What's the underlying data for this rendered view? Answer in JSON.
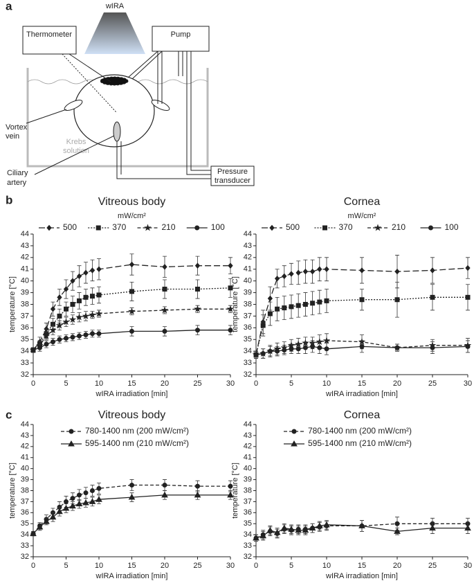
{
  "diagram": {
    "label": "a",
    "source": "wIRA",
    "thermometer": "Thermometer",
    "pump": "Pump",
    "vortex_vein": [
      "Vortex",
      "vein"
    ],
    "krebs": [
      "Krebs",
      "solution"
    ],
    "ciliary_artery": [
      "Ciliary",
      "artery"
    ],
    "pressure_transducer": [
      "Pressure",
      "transducer"
    ]
  },
  "chart_data": [
    {
      "type": "line",
      "panel": "b",
      "title": "Vitreous body",
      "units": "mW/cm²",
      "legend": "top-row",
      "xlabel": "wIRA irradiation [min]",
      "ylabel": "temperature [°C]",
      "x": [
        0,
        1,
        2,
        3,
        4,
        5,
        6,
        7,
        8,
        9,
        10,
        15,
        20,
        25,
        30
      ],
      "xlim": [
        0,
        30
      ],
      "xticks": [
        0,
        5,
        10,
        15,
        20,
        25,
        30
      ],
      "ylim": [
        32,
        44
      ],
      "yticks": [
        32,
        33,
        34,
        35,
        36,
        37,
        38,
        39,
        40,
        41,
        42,
        43,
        44
      ],
      "series": [
        {
          "name": "500",
          "color": "#222",
          "dash": "long-dash",
          "marker": "diamond",
          "values": [
            34.1,
            34.8,
            35.9,
            37.6,
            38.6,
            39.3,
            40.0,
            40.4,
            40.7,
            40.9,
            41.0,
            41.4,
            41.2,
            41.3,
            41.3
          ],
          "errors": [
            0.2,
            0.4,
            0.5,
            0.6,
            0.7,
            0.8,
            0.8,
            0.9,
            0.9,
            0.9,
            0.9,
            0.9,
            0.9,
            0.8,
            0.7
          ]
        },
        {
          "name": "370",
          "color": "#222",
          "dash": "dotted",
          "marker": "square",
          "values": [
            34.1,
            34.6,
            35.5,
            36.3,
            37.0,
            37.6,
            38.0,
            38.3,
            38.6,
            38.7,
            38.8,
            39.1,
            39.3,
            39.3,
            39.4
          ],
          "errors": [
            0.2,
            0.3,
            0.4,
            0.5,
            0.6,
            0.6,
            0.7,
            0.7,
            0.7,
            0.7,
            0.7,
            0.8,
            0.8,
            0.8,
            0.8
          ]
        },
        {
          "name": "210",
          "color": "#222",
          "dash": "dash",
          "marker": "star",
          "values": [
            34.1,
            34.5,
            35.3,
            35.8,
            36.2,
            36.5,
            36.7,
            36.9,
            37.0,
            37.1,
            37.2,
            37.4,
            37.5,
            37.6,
            37.6
          ],
          "errors": [
            0.2,
            0.3,
            0.3,
            0.4,
            0.4,
            0.4,
            0.4,
            0.4,
            0.4,
            0.3,
            0.3,
            0.3,
            0.3,
            0.3,
            0.3
          ]
        },
        {
          "name": "100",
          "color": "#222",
          "dash": "solid",
          "marker": "circle",
          "values": [
            34.1,
            34.3,
            34.6,
            34.8,
            35.0,
            35.1,
            35.2,
            35.3,
            35.4,
            35.5,
            35.5,
            35.7,
            35.7,
            35.8,
            35.8
          ],
          "errors": [
            0.2,
            0.3,
            0.3,
            0.3,
            0.3,
            0.3,
            0.3,
            0.3,
            0.3,
            0.3,
            0.3,
            0.4,
            0.4,
            0.4,
            0.4
          ]
        }
      ]
    },
    {
      "type": "line",
      "title": "Cornea",
      "units": "mW/cm²",
      "legend": "top-row",
      "xlabel": "wIRA irradiation [min]",
      "ylabel": "temperature [°C]",
      "x": [
        0,
        1,
        2,
        3,
        4,
        5,
        6,
        7,
        8,
        9,
        10,
        15,
        20,
        25,
        30
      ],
      "xlim": [
        0,
        30
      ],
      "xticks": [
        0,
        5,
        10,
        15,
        20,
        25,
        30
      ],
      "ylim": [
        32,
        44
      ],
      "yticks": [
        32,
        33,
        34,
        35,
        36,
        37,
        38,
        39,
        40,
        41,
        42,
        43,
        44
      ],
      "series": [
        {
          "name": "500",
          "color": "#222",
          "dash": "long-dash",
          "marker": "diamond",
          "values": [
            33.7,
            36.5,
            38.5,
            40.2,
            40.4,
            40.6,
            40.7,
            40.8,
            40.8,
            41.0,
            41.0,
            40.9,
            40.8,
            40.9,
            41.1
          ],
          "errors": [
            0.3,
            1.0,
            1.0,
            0.8,
            0.9,
            0.9,
            1.0,
            1.0,
            1.0,
            1.0,
            1.0,
            1.1,
            1.4,
            1.1,
            0.9
          ]
        },
        {
          "name": "370",
          "color": "#222",
          "dash": "dotted",
          "marker": "square",
          "values": [
            33.7,
            36.2,
            37.2,
            37.6,
            37.7,
            37.8,
            37.9,
            38.0,
            38.1,
            38.2,
            38.3,
            38.4,
            38.4,
            38.6,
            38.6
          ],
          "errors": [
            0.3,
            0.9,
            1.0,
            1.0,
            1.0,
            1.0,
            1.0,
            1.0,
            1.0,
            1.0,
            1.0,
            0.9,
            1.5,
            1.1,
            1.1
          ]
        },
        {
          "name": "210",
          "color": "#222",
          "dash": "dash",
          "marker": "star",
          "values": [
            33.7,
            33.8,
            34.0,
            34.2,
            34.3,
            34.5,
            34.6,
            34.7,
            34.7,
            34.8,
            34.9,
            34.8,
            34.3,
            34.5,
            34.5
          ],
          "errors": [
            0.3,
            0.4,
            0.5,
            0.5,
            0.5,
            0.5,
            0.5,
            0.5,
            0.5,
            0.6,
            0.6,
            0.6,
            0.3,
            0.5,
            0.6
          ]
        },
        {
          "name": "100",
          "color": "#222",
          "dash": "solid",
          "marker": "circle",
          "values": [
            33.7,
            33.8,
            34.0,
            34.0,
            34.1,
            34.2,
            34.2,
            34.3,
            34.4,
            34.3,
            34.2,
            34.4,
            34.3,
            34.3,
            34.4
          ],
          "errors": [
            0.3,
            0.4,
            0.4,
            0.4,
            0.4,
            0.4,
            0.4,
            0.5,
            0.5,
            0.5,
            0.5,
            0.5,
            0.3,
            0.5,
            0.5
          ]
        }
      ]
    },
    {
      "type": "line",
      "panel": "c",
      "title": "Vitreous body",
      "legend": "upper-left",
      "xlabel": "wIRA irradiation [min]",
      "ylabel": "temperature [°C]",
      "x": [
        0,
        1,
        2,
        3,
        4,
        5,
        6,
        7,
        8,
        9,
        10,
        15,
        20,
        25,
        30
      ],
      "xlim": [
        0,
        30
      ],
      "xticks": [
        0,
        5,
        10,
        15,
        20,
        25,
        30
      ],
      "ylim": [
        32,
        44
      ],
      "yticks": [
        32,
        33,
        34,
        35,
        36,
        37,
        38,
        39,
        40,
        41,
        42,
        43,
        44
      ],
      "series": [
        {
          "name": "780-1400 nm (200 mW/cm²)",
          "color": "#222",
          "dash": "dash",
          "marker": "circle",
          "values": [
            34.1,
            34.8,
            35.4,
            36.0,
            36.5,
            37.0,
            37.3,
            37.6,
            37.8,
            38.0,
            38.2,
            38.5,
            38.5,
            38.4,
            38.4
          ],
          "errors": [
            0.2,
            0.3,
            0.4,
            0.4,
            0.5,
            0.5,
            0.5,
            0.5,
            0.5,
            0.5,
            0.5,
            0.5,
            0.5,
            0.5,
            0.5
          ]
        },
        {
          "name": "595-1400 nm (210 mW/cm²)",
          "color": "#222",
          "dash": "solid",
          "marker": "triangle",
          "values": [
            34.1,
            34.7,
            35.2,
            35.6,
            36.1,
            36.4,
            36.6,
            36.8,
            36.9,
            37.0,
            37.2,
            37.4,
            37.6,
            37.6,
            37.6
          ],
          "errors": [
            0.2,
            0.3,
            0.3,
            0.4,
            0.4,
            0.4,
            0.4,
            0.4,
            0.4,
            0.4,
            0.4,
            0.4,
            0.4,
            0.4,
            0.4
          ]
        }
      ]
    },
    {
      "type": "line",
      "title": "Cornea",
      "legend": "upper-left",
      "xlabel": "wIRA irradiation [min]",
      "ylabel": "temperature [°C]",
      "x": [
        0,
        1,
        2,
        3,
        4,
        5,
        6,
        7,
        8,
        9,
        10,
        15,
        20,
        25,
        30
      ],
      "xlim": [
        0,
        30
      ],
      "xticks": [
        0,
        5,
        10,
        15,
        20,
        25,
        30
      ],
      "ylim": [
        32,
        44
      ],
      "yticks": [
        32,
        33,
        34,
        35,
        36,
        37,
        38,
        39,
        40,
        41,
        42,
        43,
        44
      ],
      "series": [
        {
          "name": "780-1400 nm (200 mW/cm²)",
          "color": "#222",
          "dash": "dash",
          "marker": "circle",
          "values": [
            33.7,
            34.0,
            34.3,
            34.1,
            34.5,
            34.4,
            34.5,
            34.5,
            34.6,
            34.7,
            34.8,
            34.8,
            35.0,
            35.0,
            35.0
          ],
          "errors": [
            0.3,
            0.4,
            0.4,
            0.4,
            0.4,
            0.4,
            0.4,
            0.4,
            0.4,
            0.4,
            0.4,
            0.5,
            0.6,
            0.5,
            0.5
          ]
        },
        {
          "name": "595-1400 nm (210 mW/cm²)",
          "color": "#222",
          "dash": "solid",
          "marker": "triangle",
          "values": [
            33.7,
            33.9,
            34.4,
            34.2,
            34.6,
            34.5,
            34.4,
            34.4,
            34.6,
            34.8,
            34.9,
            34.8,
            34.3,
            34.6,
            34.6
          ],
          "errors": [
            0.3,
            0.4,
            0.4,
            0.4,
            0.4,
            0.4,
            0.4,
            0.4,
            0.4,
            0.4,
            0.4,
            0.5,
            0.3,
            0.5,
            0.5
          ]
        }
      ]
    }
  ]
}
